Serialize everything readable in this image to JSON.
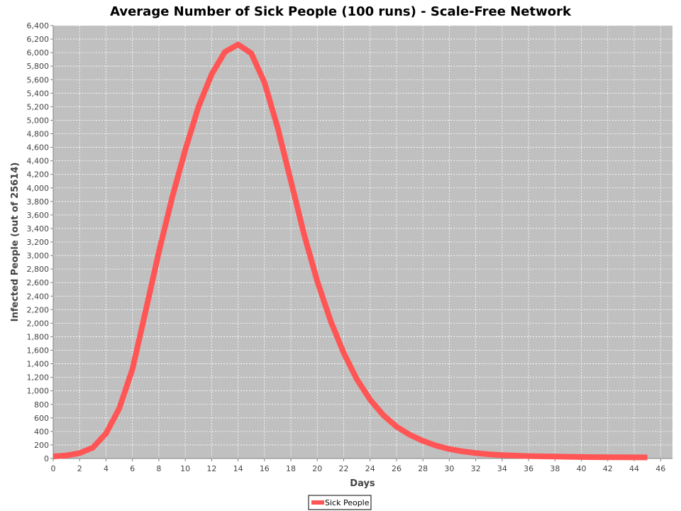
{
  "chart_data": {
    "type": "line",
    "title": "Average Number of Sick People (100 runs) - Scale-Free Network",
    "xlabel": "Days",
    "ylabel": "Infected People (out of 25614)",
    "xlim": [
      0,
      46.9
    ],
    "ylim": [
      0,
      6400
    ],
    "x_ticks": [
      0,
      2,
      4,
      6,
      8,
      10,
      12,
      14,
      16,
      18,
      20,
      22,
      24,
      26,
      28,
      30,
      32,
      34,
      36,
      38,
      40,
      42,
      44,
      46
    ],
    "x_tick_labels": [
      "0",
      "2",
      "4",
      "6",
      "8",
      "10",
      "12",
      "14",
      "16",
      "18",
      "20",
      "22",
      "24",
      "26",
      "28",
      "30",
      "32",
      "34",
      "36",
      "38",
      "40",
      "42",
      "44",
      "46"
    ],
    "y_ticks": [
      0,
      200,
      400,
      600,
      800,
      1000,
      1200,
      1400,
      1600,
      1800,
      2000,
      2200,
      2400,
      2600,
      2800,
      3000,
      3200,
      3400,
      3600,
      3800,
      4000,
      4200,
      4400,
      4600,
      4800,
      5000,
      5200,
      5400,
      5600,
      5800,
      6000,
      6200,
      6400
    ],
    "y_tick_labels": [
      "0",
      "200",
      "400",
      "600",
      "800",
      "1,000",
      "1,200",
      "1,400",
      "1,600",
      "1,800",
      "2,000",
      "2,200",
      "2,400",
      "2,600",
      "2,800",
      "3,000",
      "3,200",
      "3,400",
      "3,600",
      "3,800",
      "4,000",
      "4,200",
      "4,400",
      "4,600",
      "4,800",
      "5,000",
      "5,200",
      "5,400",
      "5,600",
      "5,800",
      "6,000",
      "6,200",
      "6,400"
    ],
    "grid": true,
    "legend_position": "bottom-center",
    "series": [
      {
        "name": "Sick People",
        "color": "#ff5555",
        "x": [
          0,
          1,
          2,
          3,
          4,
          5,
          6,
          7,
          8,
          9,
          10,
          11,
          12,
          13,
          14,
          15,
          16,
          17,
          18,
          19,
          20,
          21,
          22,
          23,
          24,
          25,
          26,
          27,
          28,
          29,
          30,
          31,
          32,
          33,
          34,
          35,
          36,
          37,
          38,
          39,
          40,
          41,
          42,
          43,
          44,
          45
        ],
        "values": [
          30,
          45,
          80,
          160,
          370,
          740,
          1320,
          2180,
          3050,
          3850,
          4560,
          5200,
          5680,
          6010,
          6120,
          5990,
          5560,
          4890,
          4100,
          3310,
          2620,
          2040,
          1560,
          1170,
          870,
          640,
          470,
          350,
          260,
          190,
          140,
          105,
          80,
          62,
          50,
          42,
          36,
          32,
          28,
          25,
          22,
          20,
          19,
          18,
          17,
          16
        ]
      }
    ]
  }
}
